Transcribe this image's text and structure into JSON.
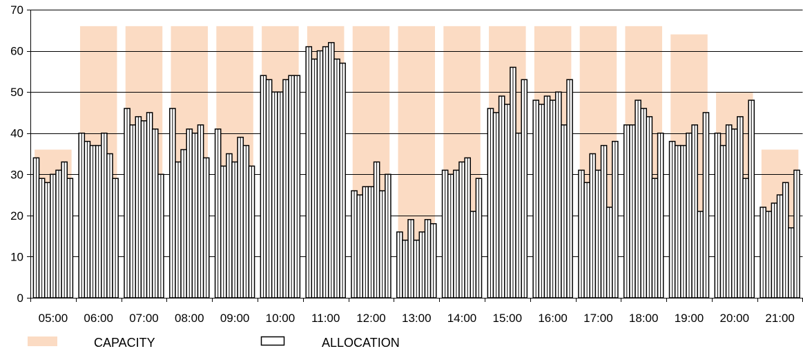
{
  "chart_data": {
    "type": "bar",
    "categories": [
      "05:00",
      "06:00",
      "07:00",
      "08:00",
      "09:00",
      "10:00",
      "11:00",
      "12:00",
      "13:00",
      "14:00",
      "15:00",
      "16:00",
      "17:00",
      "18:00",
      "19:00",
      "20:00",
      "21:00"
    ],
    "ylim": [
      0,
      70
    ],
    "yticks": [
      0,
      10,
      20,
      30,
      40,
      50,
      60,
      70
    ],
    "grid": true,
    "legend_position": "bottom",
    "series": [
      {
        "name": "CAPACITY",
        "color": "#FBDBC3",
        "values": [
          36,
          66,
          66,
          66,
          66,
          66,
          66,
          66,
          66,
          66,
          66,
          66,
          66,
          66,
          64,
          50,
          36
        ]
      },
      {
        "name": "ALLOCATION",
        "color": "#FFFFFF",
        "stroke": "#000000",
        "values": [
          [
            34,
            29,
            28,
            30,
            31,
            33,
            29
          ],
          [
            40,
            38,
            37,
            37,
            40,
            35,
            29
          ],
          [
            46,
            42,
            44,
            43,
            45,
            41,
            30
          ],
          [
            46,
            33,
            36,
            41,
            40,
            42,
            34
          ],
          [
            41,
            32,
            35,
            33,
            39,
            37,
            32
          ],
          [
            54,
            53,
            50,
            50,
            53,
            54,
            54
          ],
          [
            61,
            58,
            60,
            61,
            62,
            58,
            57
          ],
          [
            26,
            25,
            27,
            27,
            33,
            26,
            30
          ],
          [
            16,
            14,
            19,
            14,
            16,
            19,
            18
          ],
          [
            31,
            30,
            31,
            33,
            34,
            21,
            29
          ],
          [
            46,
            45,
            49,
            47,
            56,
            40,
            53
          ],
          [
            48,
            47,
            49,
            48,
            50,
            42,
            53
          ],
          [
            31,
            28,
            35,
            31,
            37,
            22,
            38
          ],
          [
            42,
            42,
            48,
            46,
            44,
            29,
            40
          ],
          [
            38,
            37,
            37,
            40,
            42,
            21,
            45
          ],
          [
            40,
            37,
            42,
            41,
            44,
            29,
            48
          ],
          [
            22,
            21,
            23,
            25,
            28,
            17,
            31
          ]
        ]
      }
    ]
  }
}
